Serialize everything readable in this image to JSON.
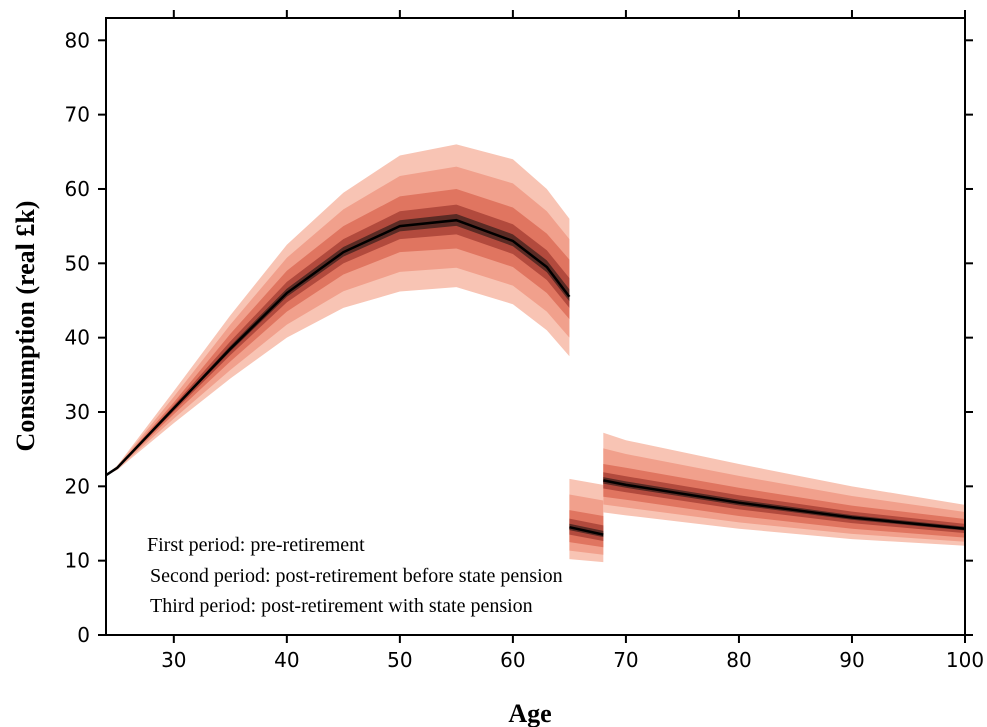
{
  "chart_data": {
    "type": "area",
    "title": "",
    "xlabel": "Age",
    "ylabel": "Consumption (real £k)",
    "xlim": [
      24,
      100
    ],
    "ylim": [
      0,
      83
    ],
    "xticks": [
      30,
      40,
      50,
      60,
      70,
      80,
      90,
      100
    ],
    "yticks": [
      0,
      10,
      20,
      30,
      40,
      50,
      60,
      70,
      80
    ],
    "grid": false,
    "annotations": [
      "First period: pre-retirement",
      "Second period: post-retirement before state pension",
      "Third period: post-retirement with state pension"
    ],
    "colors": {
      "outer_band": "#f8c4b4",
      "band_2": "#f1a08c",
      "band_3": "#e07560",
      "band_4": "#b24a3d",
      "inner_band": "#5a2a24",
      "median_line": "#000000"
    },
    "series": [
      {
        "x": [
          24,
          25,
          30,
          35,
          40,
          45,
          50,
          55,
          60,
          63,
          65
        ],
        "median": [
          21.5,
          22.5,
          30.5,
          38.5,
          46.0,
          51.5,
          55.0,
          55.8,
          53.0,
          49.5,
          45.5
        ],
        "p5": [
          21.5,
          22.2,
          28.5,
          34.5,
          40.0,
          44.0,
          46.2,
          46.8,
          44.5,
          41.0,
          37.5
        ],
        "p25": [
          21.5,
          22.4,
          29.7,
          36.8,
          43.5,
          48.5,
          51.5,
          52.0,
          49.5,
          46.0,
          42.5
        ],
        "p75": [
          21.5,
          22.6,
          31.3,
          40.5,
          49.0,
          55.0,
          59.0,
          60.0,
          57.5,
          54.0,
          50.5
        ],
        "p95": [
          21.5,
          22.8,
          32.8,
          43.0,
          52.5,
          59.5,
          64.5,
          66.0,
          64.0,
          60.0,
          56.0
        ]
      },
      {
        "x": [
          65,
          68
        ],
        "median": [
          14.5,
          13.5
        ],
        "p5": [
          10.2,
          9.8
        ],
        "p25": [
          12.5,
          11.8
        ],
        "p75": [
          16.8,
          16.0
        ],
        "p95": [
          21.0,
          20.2
        ]
      },
      {
        "x": [
          68,
          70,
          80,
          90,
          100
        ],
        "median": [
          20.8,
          20.2,
          17.8,
          15.8,
          14.3
        ],
        "p5": [
          16.5,
          16.1,
          14.3,
          12.9,
          12.0
        ],
        "p25": [
          18.6,
          18.2,
          16.0,
          14.3,
          13.1
        ],
        "p75": [
          23.0,
          22.5,
          19.8,
          17.4,
          15.6
        ],
        "p95": [
          27.2,
          26.2,
          23.0,
          20.0,
          17.5
        ]
      }
    ]
  }
}
